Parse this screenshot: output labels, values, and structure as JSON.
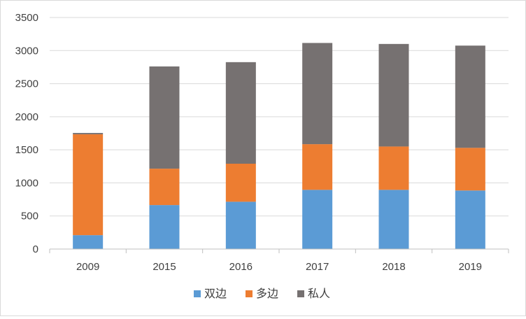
{
  "chart_data": {
    "type": "bar",
    "stacked": true,
    "title": "",
    "xlabel": "",
    "ylabel": "",
    "categories": [
      "2009",
      "2015",
      "2016",
      "2017",
      "2018",
      "2019"
    ],
    "series": [
      {
        "name": "双边",
        "color": "#5B9BD5",
        "values": [
          210,
          665,
          715,
          895,
          895,
          885
        ]
      },
      {
        "name": "多边",
        "color": "#ED7D31",
        "values": [
          1525,
          550,
          575,
          690,
          655,
          645
        ]
      },
      {
        "name": "私人",
        "color": "#767171",
        "values": [
          20,
          1545,
          1535,
          1530,
          1550,
          1545
        ]
      }
    ],
    "ylim": [
      0,
      3500
    ],
    "yticks": [
      0,
      500,
      1000,
      1500,
      2000,
      2500,
      3000,
      3500
    ],
    "grid": true,
    "legend_position": "bottom"
  }
}
